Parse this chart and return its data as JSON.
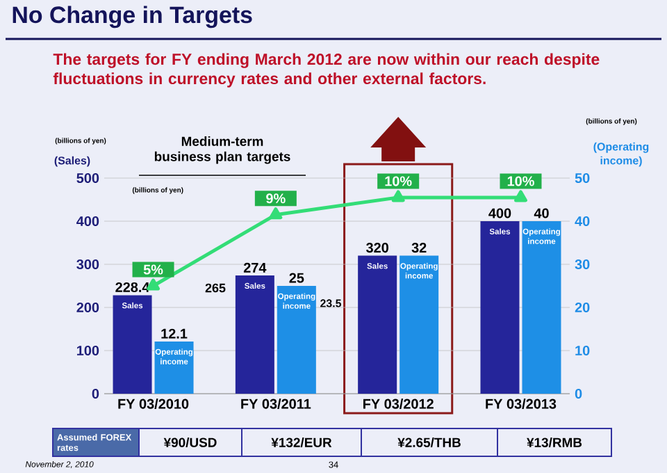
{
  "chart_data": {
    "type": "bar",
    "title": "No Change in Targets",
    "subtitle": "The targets for FY ending March 2012 are now within our reach despite fluctuations in currency rates and other external factors.",
    "ylabel": "(Sales)",
    "y2label": "(Operating income)",
    "categories": [
      "FY 03/2010",
      "FY 03/2011",
      "FY 03/2012",
      "FY 03/2013"
    ],
    "series": [
      {
        "name": "Sales",
        "color": "#25259a",
        "values": [
          228.4,
          274,
          320,
          400
        ],
        "value_labels": [
          "228.4",
          "274",
          "320",
          "400"
        ]
      },
      {
        "name": "Operating income",
        "color": "#1e8fe6",
        "values": [
          12.1,
          25,
          32,
          40
        ],
        "value_labels": [
          "12.1",
          "25",
          "32",
          "40"
        ],
        "axis": "y2"
      },
      {
        "type": "line",
        "color": "#33dd77",
        "values": [
          250,
          415,
          455,
          455
        ],
        "marker": "triangle"
      }
    ],
    "ylim": [
      0,
      500
    ],
    "yticks": [
      0,
      100,
      200,
      300,
      400,
      500
    ],
    "y2lim": [
      0,
      50
    ],
    "y2ticks": [
      0,
      10,
      20,
      30,
      40,
      50
    ],
    "grid": "y",
    "annotations": [
      "(billions of yen)",
      "Medium-term business plan targets",
      "(billions of yen)",
      "(billions of yen)",
      "265",
      "23.5",
      "Assumed FOREX rates",
      "¥90/USD",
      "¥132/EUR",
      "¥2.65/THB",
      "¥13/RMB",
      "November 2, 2010",
      "34",
      {
        "text": "5%",
        "x": "FY 03/2010",
        "y": 250
      },
      {
        "text": "9%",
        "x": "FY 03/2011",
        "y": 415
      },
      {
        "text": "10%",
        "x": "FY 03/2012",
        "y": 455
      },
      {
        "text": "10%",
        "x": "FY 03/2013",
        "y": 455
      }
    ]
  }
}
